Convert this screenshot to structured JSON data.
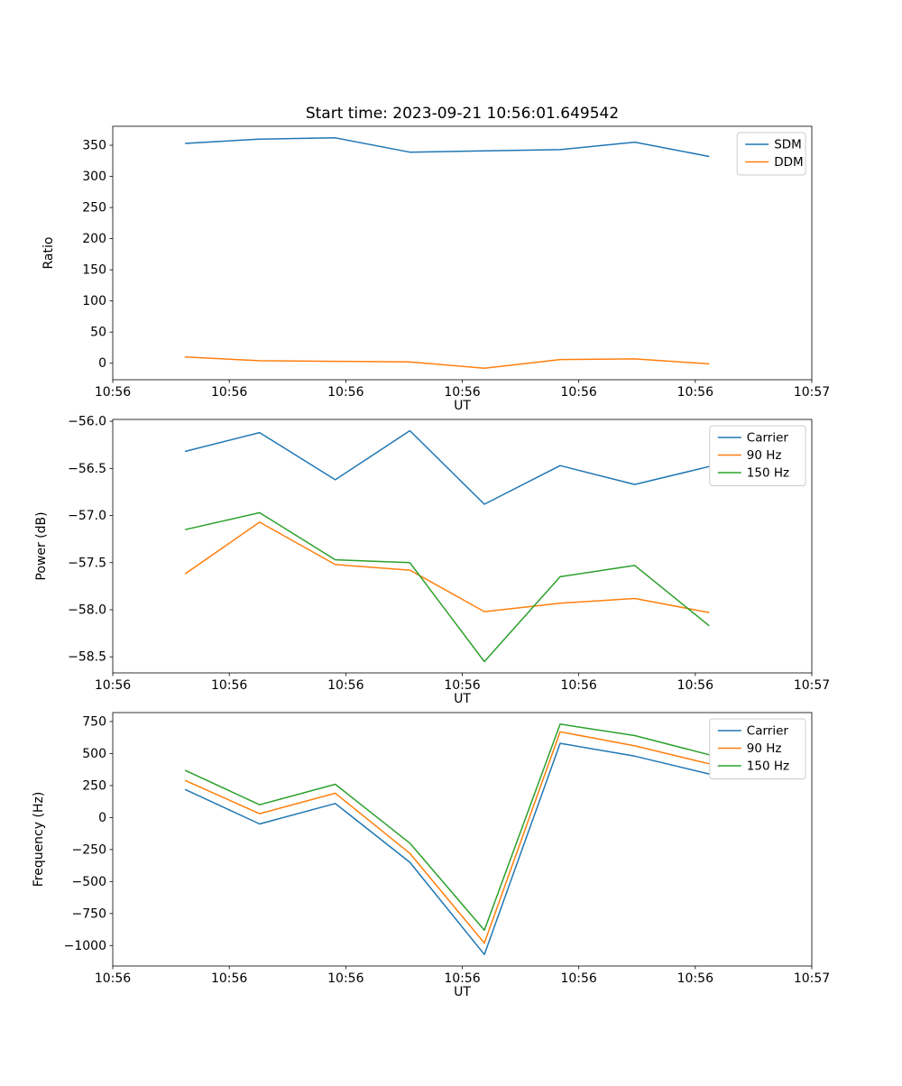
{
  "figure": {
    "title": "Start time: 2023-09-21 10:56:01.649542",
    "background": "#ffffff",
    "accent_colors": {
      "blue": "#1f77b4",
      "orange": "#ff7f0e",
      "green": "#2ca02c"
    }
  },
  "chart_data": [
    {
      "type": "line",
      "title": "Start time: 2023-09-21 10:56:01.649542",
      "xlabel": "UT",
      "ylabel": "Ratio",
      "x_unit": "seconds after 10:56:00",
      "x": [
        6.2,
        12.6,
        19.1,
        25.5,
        31.9,
        38.4,
        44.8,
        51.2
      ],
      "series": [
        {
          "name": "SDM",
          "color": "#1f77b4",
          "values": [
            353,
            360,
            362,
            339,
            341,
            343,
            355,
            332
          ]
        },
        {
          "name": "DDM",
          "color": "#ff7f0e",
          "values": [
            10,
            4,
            3,
            2,
            -8,
            6,
            7,
            -1
          ]
        }
      ],
      "xlim": [
        0,
        60
      ],
      "ylim": [
        -26.5,
        380.5
      ],
      "xticks": [
        0,
        10,
        20,
        30,
        40,
        50,
        60
      ],
      "xtick_labels": [
        "10:56",
        "10:56",
        "10:56",
        "10:56",
        "10:56",
        "10:56",
        "10:57"
      ],
      "yticks": [
        0,
        50,
        100,
        150,
        200,
        250,
        300,
        350
      ],
      "ytick_decimals": 0,
      "grid": false,
      "legend": {
        "position": "upper right",
        "entries": [
          "SDM",
          "DDM"
        ]
      }
    },
    {
      "type": "line",
      "title": "",
      "xlabel": "UT",
      "ylabel": "Power (dB)",
      "x_unit": "seconds after 10:56:00",
      "x": [
        6.2,
        12.6,
        19.1,
        25.5,
        31.9,
        38.4,
        44.8,
        51.2
      ],
      "series": [
        {
          "name": "Carrier",
          "color": "#1f77b4",
          "values": [
            -56.32,
            -56.12,
            -56.62,
            -56.1,
            -56.88,
            -56.47,
            -56.67,
            -56.48
          ]
        },
        {
          "name": "90 Hz",
          "color": "#ff7f0e",
          "values": [
            -57.62,
            -57.07,
            -57.52,
            -57.58,
            -58.02,
            -57.93,
            -57.88,
            -58.03
          ]
        },
        {
          "name": "150 Hz",
          "color": "#2ca02c",
          "values": [
            -57.15,
            -56.97,
            -57.47,
            -57.5,
            -58.55,
            -57.65,
            -57.53,
            -58.17
          ]
        }
      ],
      "xlim": [
        0,
        60
      ],
      "ylim": [
        -58.67,
        -55.98
      ],
      "xticks": [
        0,
        10,
        20,
        30,
        40,
        50,
        60
      ],
      "xtick_labels": [
        "10:56",
        "10:56",
        "10:56",
        "10:56",
        "10:56",
        "10:56",
        "10:57"
      ],
      "yticks": [
        -58.5,
        -58.0,
        -57.5,
        -57.0,
        -56.5,
        -56.0
      ],
      "ytick_decimals": 1,
      "grid": false,
      "legend": {
        "position": "upper right",
        "entries": [
          "Carrier",
          "90 Hz",
          "150 Hz"
        ]
      }
    },
    {
      "type": "line",
      "title": "",
      "xlabel": "UT",
      "ylabel": "Frequency (Hz)",
      "x_unit": "seconds after 10:56:00",
      "x": [
        6.2,
        12.6,
        19.1,
        25.5,
        31.9,
        38.4,
        44.8,
        51.2
      ],
      "series": [
        {
          "name": "Carrier",
          "color": "#1f77b4",
          "values": [
            220,
            -50,
            110,
            -350,
            -1070,
            580,
            480,
            340
          ]
        },
        {
          "name": "90 Hz",
          "color": "#ff7f0e",
          "values": [
            290,
            30,
            190,
            -280,
            -980,
            670,
            560,
            420
          ]
        },
        {
          "name": "150 Hz",
          "color": "#2ca02c",
          "values": [
            370,
            100,
            260,
            -200,
            -880,
            730,
            640,
            490
          ]
        }
      ],
      "xlim": [
        0,
        60
      ],
      "ylim": [
        -1160,
        820
      ],
      "xticks": [
        0,
        10,
        20,
        30,
        40,
        50,
        60
      ],
      "xtick_labels": [
        "10:56",
        "10:56",
        "10:56",
        "10:56",
        "10:56",
        "10:56",
        "10:57"
      ],
      "yticks": [
        -1000,
        -750,
        -500,
        -250,
        0,
        250,
        500,
        750
      ],
      "ytick_decimals": 0,
      "grid": false,
      "legend": {
        "position": "upper right",
        "entries": [
          "Carrier",
          "90 Hz",
          "150 Hz"
        ]
      }
    }
  ]
}
